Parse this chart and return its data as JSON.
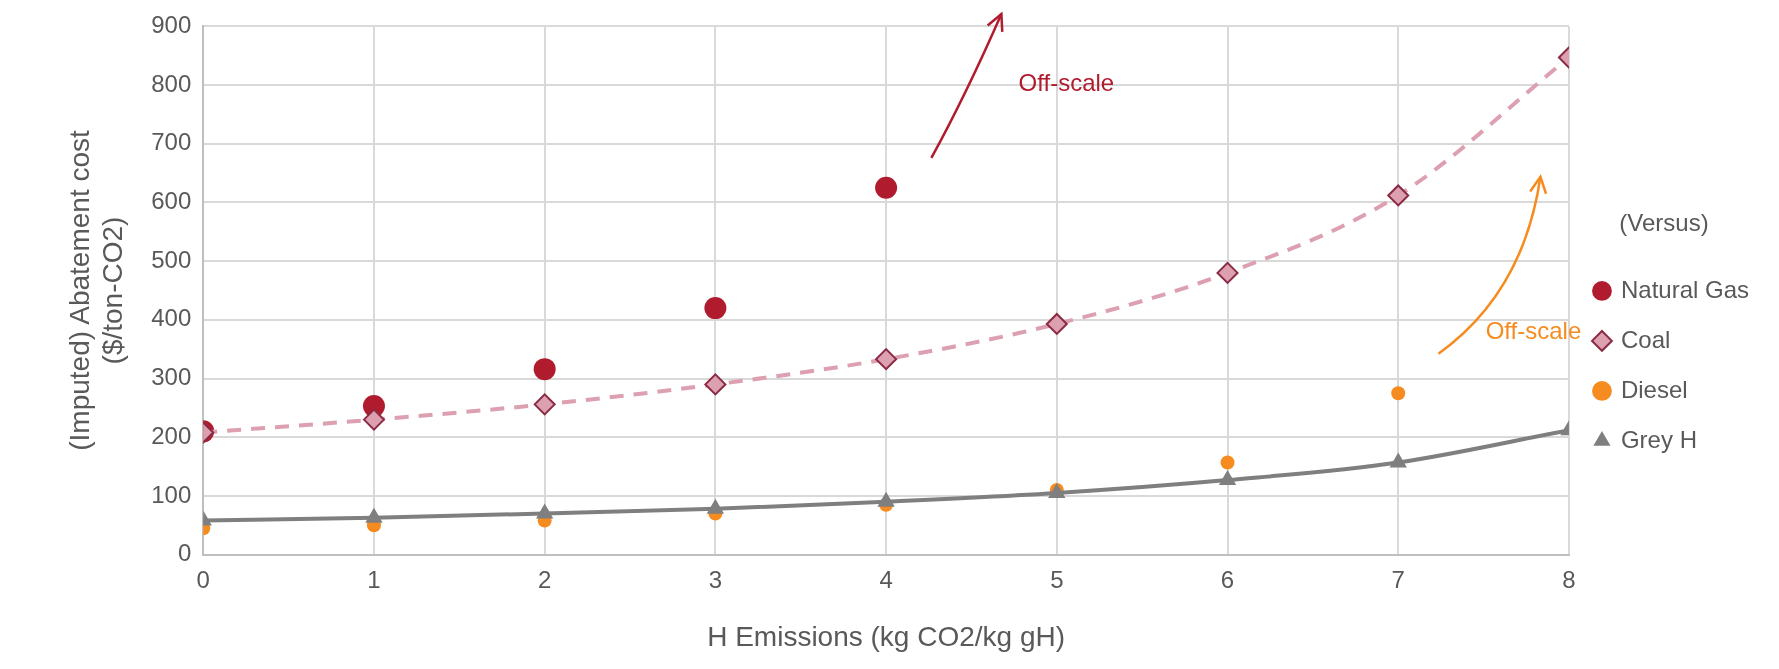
{
  "chart_data": {
    "type": "line",
    "xlabel": "H Emissions (kg CO2/kg gH)",
    "ylabel": "(Imputed) Abatement cost ($/ton-CO2)",
    "legend_title": "(Versus)",
    "legend": "right",
    "grid": true,
    "x": [
      0,
      1,
      2,
      3,
      4,
      5,
      6,
      7,
      8
    ],
    "xlim": [
      0,
      8
    ],
    "xticks": [
      0,
      1,
      2,
      3,
      4,
      5,
      6,
      7,
      8
    ],
    "ylim": [
      0,
      900
    ],
    "yticks": [
      0,
      100,
      200,
      300,
      400,
      500,
      600,
      700,
      800,
      900
    ],
    "series": [
      {
        "name": "Natural Gas",
        "type": "scatter",
        "marker": "circle",
        "color": "#b01c2e",
        "values": [
          210,
          253,
          316,
          420,
          625,
          null,
          null,
          null,
          null
        ]
      },
      {
        "name": "Coal",
        "type": "line",
        "marker": "diamond",
        "line_style": "dashed",
        "color": "#dca0b0",
        "values": [
          208,
          230,
          256,
          290,
          333,
          393,
          480,
          612,
          847
        ]
      },
      {
        "name": "Diesel",
        "type": "scatter",
        "marker": "circle",
        "color": "#f68b1f",
        "values": [
          45,
          50,
          58,
          70,
          85,
          110,
          157,
          275,
          null
        ]
      },
      {
        "name": "Grey H",
        "type": "line",
        "marker": "triangle",
        "line_style": "solid",
        "color": "#7f7f7f",
        "values": [
          58,
          63,
          70,
          78,
          90,
          105,
          127,
          157,
          212
        ]
      }
    ],
    "annotations": [
      "Off-scale",
      "Off-scale"
    ]
  }
}
